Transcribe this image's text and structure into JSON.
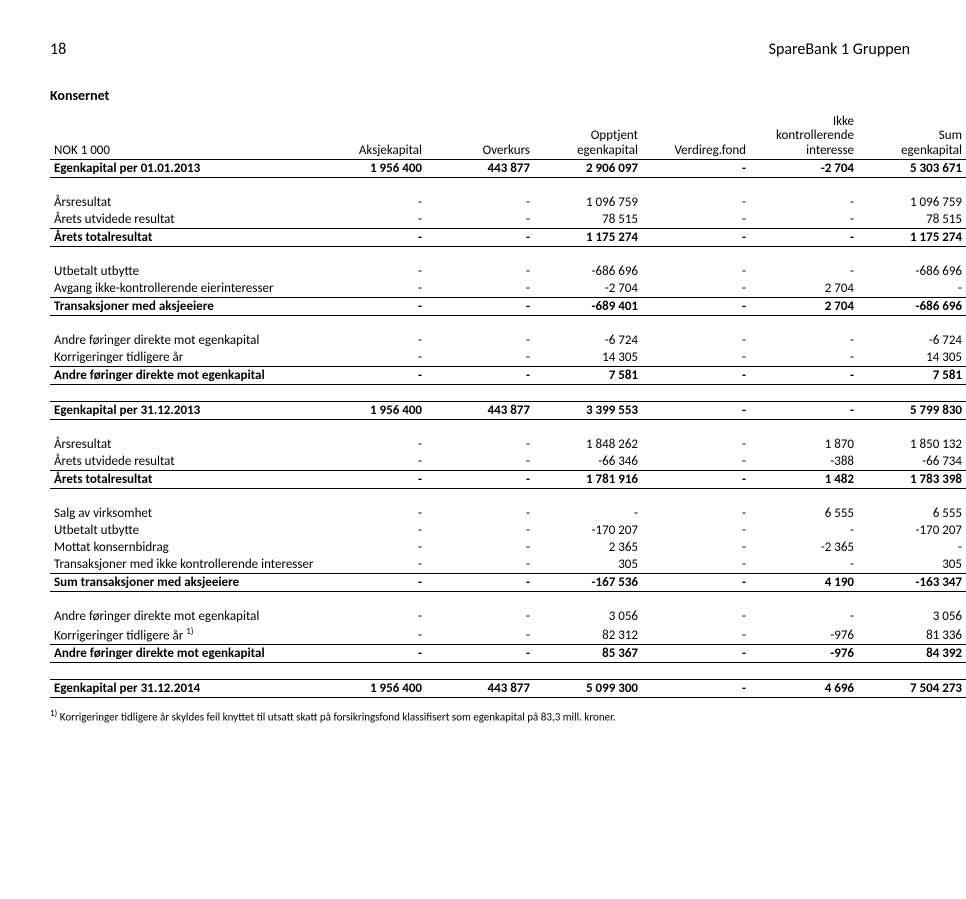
{
  "page_number": "18",
  "company": "SpareBank 1 Gruppen",
  "section_title": "Konsernet",
  "columns": {
    "c0": "NOK 1 000",
    "c1": "Aksjekapital",
    "c2": "Overkurs",
    "c3a": "Opptjent",
    "c3b": "egenkapital",
    "c4": "Verdireg.fond",
    "c5a": "Ikke",
    "c5b": "kontrollerende",
    "c5c": "interesse",
    "c6a": "Sum",
    "c6b": "egenkapital"
  },
  "rows": [
    {
      "label": "Egenkapital per 01.01.2013",
      "c1": "1 956 400",
      "c2": "443 877",
      "c3": "2 906 097",
      "c4": "-",
      "c5": "-2 704",
      "c6": "5 303 671",
      "bold": true,
      "bt": true,
      "bb": true
    },
    {
      "spacer": true
    },
    {
      "label": "Årsresultat",
      "c1": "-",
      "c2": "-",
      "c3": "1 096 759",
      "c4": "-",
      "c5": "-",
      "c6": "1 096 759"
    },
    {
      "label": "Årets utvidede resultat",
      "c1": "-",
      "c2": "-",
      "c3": "78 515",
      "c4": "-",
      "c5": "-",
      "c6": "78 515",
      "bb": true
    },
    {
      "label": "Årets totalresultat",
      "c1": "-",
      "c2": "-",
      "c3": "1 175 274",
      "c4": "-",
      "c5": "-",
      "c6": "1 175 274",
      "bold": true,
      "bb": true
    },
    {
      "spacer": true
    },
    {
      "label": "Utbetalt utbytte",
      "c1": "-",
      "c2": "-",
      "c3": "-686 696",
      "c4": "-",
      "c5": "-",
      "c6": "-686 696"
    },
    {
      "label": "Avgang ikke-kontrollerende eierinteresser",
      "c1": "-",
      "c2": "-",
      "c3": "-2 704",
      "c4": "-",
      "c5": "2 704",
      "c6": "-",
      "bb": true
    },
    {
      "label": "Transaksjoner med aksjeeiere",
      "c1": "-",
      "c2": "-",
      "c3": "-689 401",
      "c4": "-",
      "c5": "2 704",
      "c6": "-686 696",
      "bold": true,
      "bb": true
    },
    {
      "spacer": true
    },
    {
      "label": "Andre føringer direkte mot egenkapital",
      "c1": "-",
      "c2": "-",
      "c3": "-6 724",
      "c4": "-",
      "c5": "-",
      "c6": "-6 724"
    },
    {
      "label": "Korrigeringer tidligere år",
      "c1": "-",
      "c2": "-",
      "c3": "14 305",
      "c4": "-",
      "c5": "-",
      "c6": "14 305",
      "bb": true
    },
    {
      "label": "Andre føringer direkte mot egenkapital",
      "c1": "-",
      "c2": "-",
      "c3": "7 581",
      "c4": "-",
      "c5": "-",
      "c6": "7 581",
      "bold": true,
      "bb": true
    },
    {
      "spacer": true
    },
    {
      "label": "Egenkapital per 31.12.2013",
      "c1": "1 956 400",
      "c2": "443 877",
      "c3": "3 399 553",
      "c4": "-",
      "c5": "-",
      "c6": "5 799 830",
      "bold": true,
      "bt": true,
      "bb": true
    },
    {
      "spacer": true
    },
    {
      "label": "Årsresultat",
      "c1": "-",
      "c2": "-",
      "c3": "1 848 262",
      "c4": "-",
      "c5": "1 870",
      "c6": "1 850 132"
    },
    {
      "label": "Årets utvidede resultat",
      "c1": "-",
      "c2": "-",
      "c3": "-66 346",
      "c4": "-",
      "c5": "-388",
      "c6": "-66 734",
      "bb": true
    },
    {
      "label": "Årets totalresultat",
      "c1": "-",
      "c2": "-",
      "c3": "1 781 916",
      "c4": "-",
      "c5": "1 482",
      "c6": "1 783 398",
      "bold": true,
      "bb": true
    },
    {
      "spacer": true
    },
    {
      "label": "Salg av virksomhet",
      "c1": "-",
      "c2": "-",
      "c3": "-",
      "c4": "-",
      "c5": "6 555",
      "c6": "6 555"
    },
    {
      "label": "Utbetalt utbytte",
      "c1": "-",
      "c2": "-",
      "c3": "-170 207",
      "c4": "-",
      "c5": "-",
      "c6": "-170 207"
    },
    {
      "label": "Mottat konsernbidrag",
      "c1": "-",
      "c2": "-",
      "c3": "2 365",
      "c4": "-",
      "c5": "-2 365",
      "c6": "-"
    },
    {
      "label": "Transaksjoner med ikke kontrollerende interesser",
      "c1": "-",
      "c2": "-",
      "c3": "305",
      "c4": "-",
      "c5": "-",
      "c6": "305",
      "bb": true
    },
    {
      "label": "Sum transaksjoner med aksjeeiere",
      "c1": "-",
      "c2": "-",
      "c3": "-167 536",
      "c4": "-",
      "c5": "4 190",
      "c6": "-163 347",
      "bold": true,
      "bb": true
    },
    {
      "spacer": true
    },
    {
      "label": "Andre føringer direkte mot egenkapital",
      "c1": "-",
      "c2": "-",
      "c3": "3 056",
      "c4": "-",
      "c5": "-",
      "c6": "3 056"
    },
    {
      "label_html": "Korrigeringer tidligere år <sup>1)</sup>",
      "c1": "-",
      "c2": "-",
      "c3": "82 312",
      "c4": "-",
      "c5": "-976",
      "c6": "81 336",
      "bb": true
    },
    {
      "label": "Andre føringer direkte mot egenkapital",
      "c1": "-",
      "c2": "-",
      "c3": "85 367",
      "c4": "-",
      "c5": "-976",
      "c6": "84 392",
      "bold": true,
      "bb": true
    },
    {
      "spacer": true
    },
    {
      "label": "Egenkapital per 31.12.2014",
      "c1": "1 956 400",
      "c2": "443 877",
      "c3": "5 099 300",
      "c4": "-",
      "c5": "4 696",
      "c6": "7 504 273",
      "bold": true,
      "bt": true,
      "bb": true
    }
  ],
  "footnote_marker": "1)",
  "footnote": "Korrigeringer tidligere år skyldes feil knyttet til utsatt skatt på forsikringsfond klassifisert som egenkapital på 83,3 mill. kroner."
}
